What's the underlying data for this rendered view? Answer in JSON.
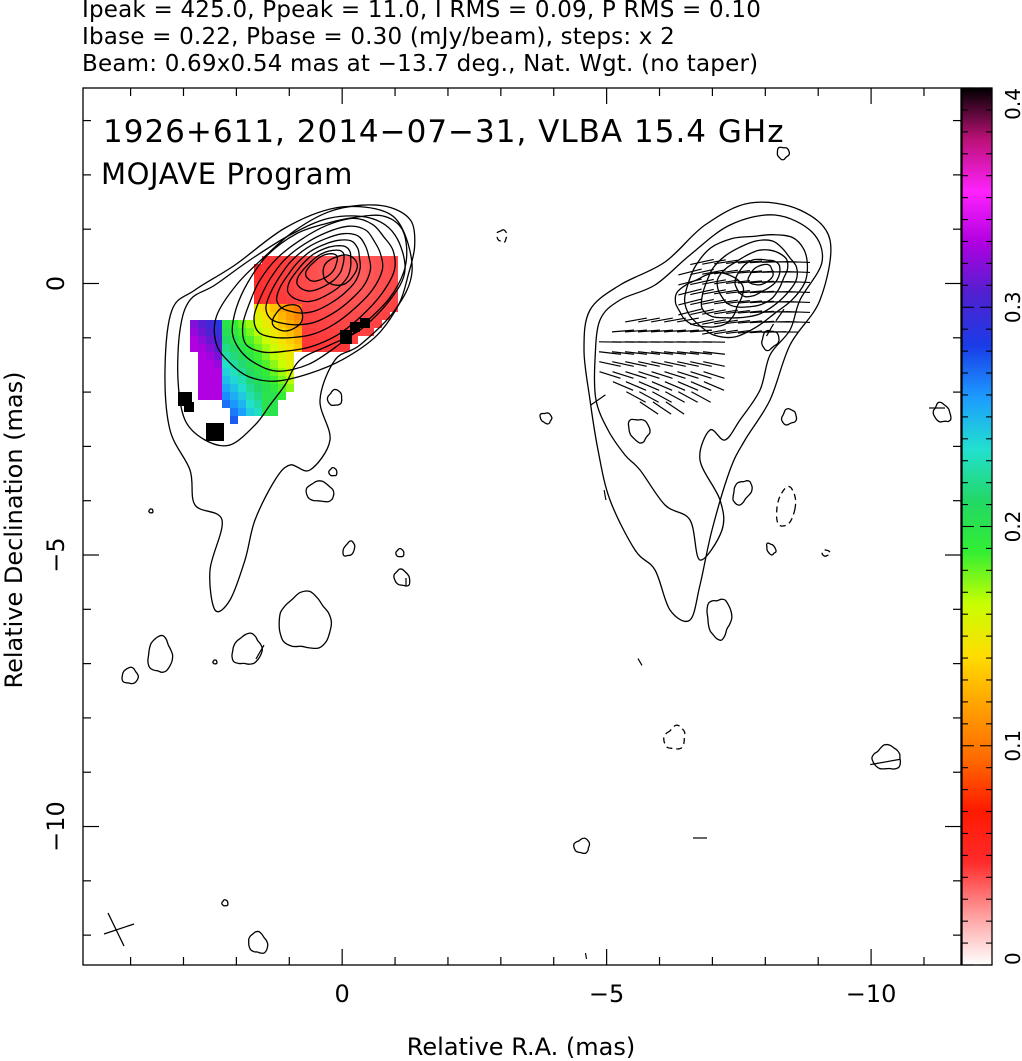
{
  "header": {
    "line1": "Ipeak = 425.0, Ppeak = 11.0, I RMS = 0.09, P RMS = 0.10",
    "line2": "Ibase = 0.22, Pbase = 0.30 (mJy/beam), steps: x 2",
    "line3": "Beam: 0.69x0.54 mas at −13.7 deg., Nat. Wgt. (no taper)"
  },
  "chart_data": {
    "type": "heatmap",
    "title": "1926+611, 2014−07−31, VLBA 15.4 GHz",
    "subtitle": "MOJAVE Program",
    "xlabel": "Relative R.A. (mas)",
    "ylabel": "Relative Declination (mas)",
    "xlim": [
      4.9,
      -11.7
    ],
    "ylim": [
      -12.55,
      3.6
    ],
    "x_ticks": [
      {
        "value": 0,
        "label": "0"
      },
      {
        "value": -5,
        "label": "−5"
      },
      {
        "value": -10,
        "label": "−10"
      }
    ],
    "y_ticks": [
      {
        "value": 0,
        "label": "0"
      },
      {
        "value": -5,
        "label": "−5"
      },
      {
        "value": -10,
        "label": "−10"
      }
    ],
    "colorbar": {
      "range": [
        0,
        0.4
      ],
      "ticks": [
        {
          "value": 0,
          "label": "0"
        },
        {
          "value": 0.1,
          "label": "0.1"
        },
        {
          "value": 0.2,
          "label": "0.2"
        },
        {
          "value": 0.3,
          "label": "0.3"
        },
        {
          "value": 0.4,
          "label": "0.4"
        }
      ],
      "colors": [
        "#ffffff",
        "#ff9a9a",
        "#ff2a2a",
        "#ff1a00",
        "#ff6a00",
        "#ffa000",
        "#ffdd00",
        "#c8ff00",
        "#33ee33",
        "#22d866",
        "#22e0d0",
        "#1c9cff",
        "#1a3ce8",
        "#5020d0",
        "#b000e0",
        "#ff22ff",
        "#bb1177",
        "#000000"
      ]
    },
    "left_panel": {
      "center": [
        0,
        0
      ],
      "contour_levels": 10,
      "fractional_polarization_region": "core and inner jet"
    },
    "right_panel": {
      "center": [
        -7.9,
        0
      ],
      "contour_levels": 6,
      "evpa_ticks": true
    }
  }
}
